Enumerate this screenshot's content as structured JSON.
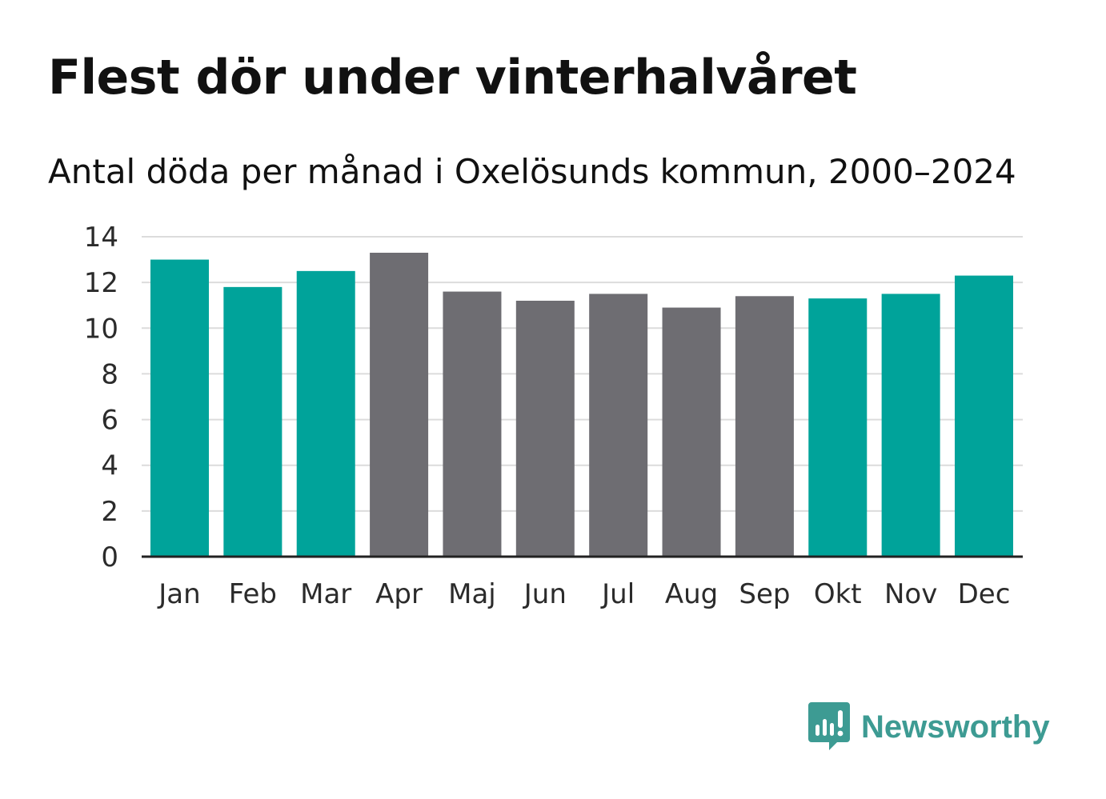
{
  "title": "Flest dör under vinterhalvåret",
  "subtitle": "Antal döda per månad i Oxelösunds kommun, 2000–2024",
  "brand": {
    "name": "Newsworthy",
    "color": "#3d9b93",
    "icon": "newsworthy-logo-icon"
  },
  "colors": {
    "winter": "#00a39a",
    "summer": "#6e6d72",
    "grid": "#dcdcdc",
    "baseline": "#222222"
  },
  "chart_data": {
    "type": "bar",
    "title": "Flest dör under vinterhalvåret",
    "subtitle": "Antal döda per månad i Oxelösunds kommun, 2000–2024",
    "xlabel": "",
    "ylabel": "",
    "ylim": [
      0,
      14
    ],
    "yticks": [
      0,
      2,
      4,
      6,
      8,
      10,
      12,
      14
    ],
    "grid": true,
    "categories": [
      "Jan",
      "Feb",
      "Mar",
      "Apr",
      "Maj",
      "Jun",
      "Jul",
      "Aug",
      "Sep",
      "Okt",
      "Nov",
      "Dec"
    ],
    "values": [
      13.0,
      11.8,
      12.5,
      13.3,
      11.6,
      11.2,
      11.5,
      10.9,
      11.4,
      11.3,
      11.5,
      12.3
    ],
    "bar_groups": [
      "winter",
      "winter",
      "winter",
      "summer",
      "summer",
      "summer",
      "summer",
      "summer",
      "summer",
      "winter",
      "winter",
      "winter"
    ]
  }
}
